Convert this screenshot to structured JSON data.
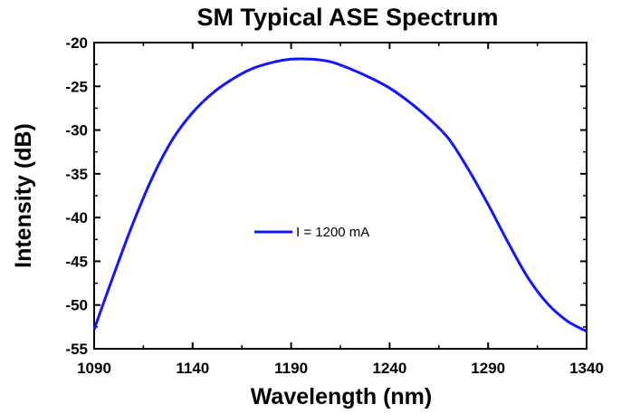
{
  "chart_data": {
    "type": "line",
    "title": "SM  Typical ASE Spectrum",
    "xlabel": "Wavelength (nm)",
    "ylabel": "Intensity (dB)",
    "xlim": [
      1090,
      1340
    ],
    "ylim": [
      -55,
      -20
    ],
    "xticks": [
      1090,
      1140,
      1190,
      1240,
      1290,
      1340
    ],
    "yticks": [
      -20,
      -25,
      -30,
      -35,
      -40,
      -45,
      -50,
      -55
    ],
    "grid": false,
    "legend_position": "center",
    "series": [
      {
        "name": "I = 1200 mA",
        "color": "#1414ff",
        "x": [
          1090,
          1100,
          1110,
          1120,
          1130,
          1140,
          1150,
          1160,
          1170,
          1180,
          1190,
          1200,
          1210,
          1220,
          1230,
          1240,
          1250,
          1260,
          1270,
          1280,
          1290,
          1300,
          1310,
          1320,
          1330,
          1340
        ],
        "y": [
          -52.8,
          -46.5,
          -40.5,
          -35.2,
          -31.0,
          -28.0,
          -25.8,
          -24.2,
          -23.0,
          -22.3,
          -21.9,
          -21.9,
          -22.2,
          -23.0,
          -24.0,
          -25.2,
          -26.8,
          -28.7,
          -31.0,
          -34.5,
          -38.5,
          -42.8,
          -46.8,
          -49.8,
          -51.8,
          -53.0
        ]
      }
    ]
  }
}
